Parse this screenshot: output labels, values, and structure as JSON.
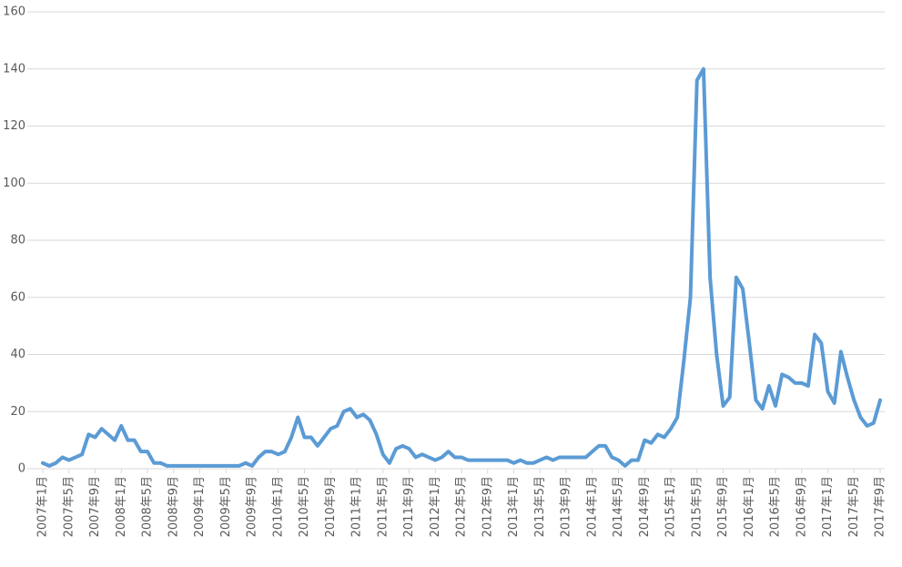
{
  "chart_data": {
    "type": "line",
    "categories": [
      "2007年1月",
      null,
      null,
      null,
      "2007年5月",
      null,
      null,
      null,
      "2007年9月",
      null,
      null,
      null,
      "2008年1月",
      null,
      null,
      null,
      "2008年5月",
      null,
      null,
      null,
      "2008年9月",
      null,
      null,
      null,
      "2009年1月",
      null,
      null,
      null,
      "2009年5月",
      null,
      null,
      null,
      "2009年9月",
      null,
      null,
      null,
      "2010年1月",
      null,
      null,
      null,
      "2010年5月",
      null,
      null,
      null,
      "2010年9月",
      null,
      null,
      null,
      "2011年1月",
      null,
      null,
      null,
      "2011年5月",
      null,
      null,
      null,
      "2011年9月",
      null,
      null,
      null,
      "2012年1月",
      null,
      null,
      null,
      "2012年5月",
      null,
      null,
      null,
      "2012年9月",
      null,
      null,
      null,
      "2013年1月",
      null,
      null,
      null,
      "2013年5月",
      null,
      null,
      null,
      "2013年9月",
      null,
      null,
      null,
      "2014年1月",
      null,
      null,
      null,
      "2014年5月",
      null,
      null,
      null,
      "2014年9月",
      null,
      null,
      null,
      "2015年1月",
      null,
      null,
      null,
      "2015年5月",
      null,
      null,
      null,
      "2015年9月",
      null,
      null,
      null,
      "2016年1月",
      null,
      null,
      null,
      "2016年5月",
      null,
      null,
      null,
      "2016年9月",
      null,
      null,
      null,
      "2017年1月",
      null,
      null,
      null,
      "2017年5月",
      null,
      null,
      null,
      "2017年9月"
    ],
    "values": [
      2,
      1,
      2,
      4,
      3,
      4,
      5,
      12,
      11,
      14,
      12,
      10,
      15,
      10,
      10,
      6,
      6,
      2,
      2,
      1,
      1,
      1,
      1,
      1,
      1,
      1,
      1,
      1,
      1,
      1,
      1,
      2,
      1,
      4,
      6,
      6,
      5,
      6,
      11,
      18,
      11,
      11,
      8,
      11,
      14,
      15,
      20,
      21,
      18,
      19,
      17,
      12,
      5,
      2,
      7,
      8,
      7,
      4,
      5,
      4,
      3,
      4,
      6,
      4,
      4,
      3,
      3,
      3,
      3,
      3,
      3,
      3,
      2,
      3,
      2,
      2,
      3,
      4,
      3,
      4,
      4,
      4,
      4,
      4,
      6,
      8,
      8,
      4,
      3,
      1,
      3,
      3,
      10,
      9,
      12,
      11,
      14,
      18,
      38,
      60,
      136,
      140,
      67,
      40,
      22,
      25,
      67,
      63,
      44,
      24,
      21,
      29,
      22,
      33,
      32,
      30,
      30,
      29,
      47,
      44,
      27,
      23,
      41,
      32,
      24,
      18,
      15,
      16,
      24
    ],
    "color": "#5b9bd5",
    "ylim": [
      0,
      160
    ],
    "yticks": [
      0,
      20,
      40,
      60,
      80,
      100,
      120,
      140,
      160
    ],
    "grid": true
  }
}
